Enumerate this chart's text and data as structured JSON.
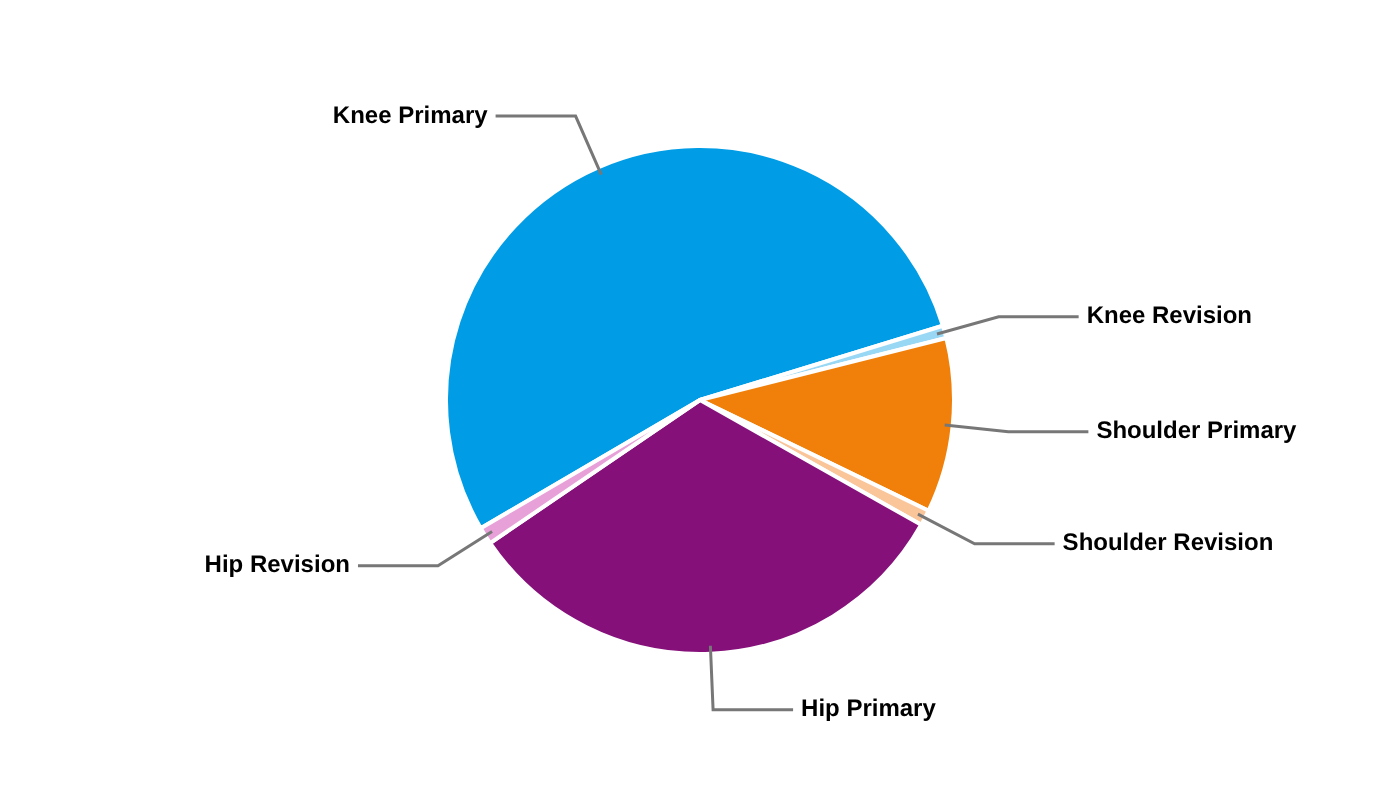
{
  "chart_data": {
    "type": "pie",
    "categories": [
      "Knee Primary",
      "Knee Revision",
      "Shoulder Primary",
      "Shoulder Revision",
      "Hip Primary",
      "Hip Revision"
    ],
    "values": [
      53.7,
      0.8,
      11.1,
      1.0,
      32.3,
      1.1
    ],
    "colors": [
      "#009de6",
      "#99d8f5",
      "#f0800a",
      "#fbc59a",
      "#85107a",
      "#e8a0d8"
    ],
    "legend": false
  }
}
